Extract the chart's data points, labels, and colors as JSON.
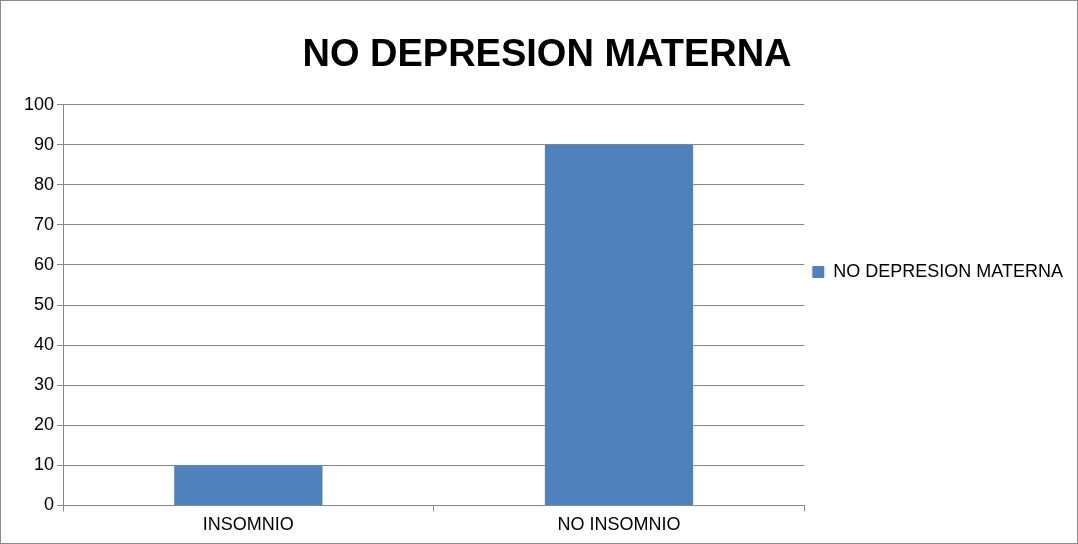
{
  "chart_data": {
    "type": "bar",
    "title": "NO DEPRESION MATERNA",
    "categories": [
      "INSOMNIO",
      "NO INSOMNIO"
    ],
    "series": [
      {
        "name": "NO DEPRESION MATERNA",
        "color": "#4f81bd",
        "values": [
          10,
          90
        ]
      }
    ],
    "ylim": [
      0,
      100
    ],
    "yticks": [
      0,
      10,
      20,
      30,
      40,
      50,
      60,
      70,
      80,
      90,
      100
    ],
    "grid": "y",
    "legend": "right"
  }
}
